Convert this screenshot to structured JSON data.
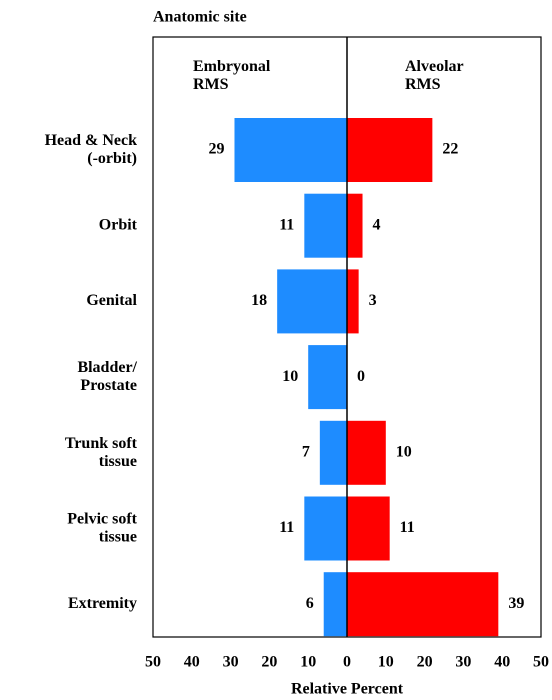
{
  "chart_data": {
    "type": "butterfly",
    "ylabel": "Anatomic site",
    "xlabel": "Relative Percent",
    "categories": [
      "Head & Neck\n(-orbit)",
      "Orbit",
      "Genital",
      "Bladder/\nProstate",
      "Trunk soft\ntissue",
      "Pelvic soft\ntissue",
      "Extremity"
    ],
    "xlim": [
      0,
      50
    ],
    "xticks": [
      0,
      10,
      20,
      30,
      40,
      50
    ],
    "series": [
      {
        "name": "Embryonal\nRMS",
        "side": "left",
        "color": "#1e8cff",
        "values": [
          29,
          11,
          18,
          10,
          7,
          11,
          6
        ]
      },
      {
        "name": "Alveolar\nRMS",
        "side": "right",
        "color": "#ff0000",
        "values": [
          22,
          4,
          3,
          0,
          10,
          11,
          39
        ]
      }
    ]
  }
}
